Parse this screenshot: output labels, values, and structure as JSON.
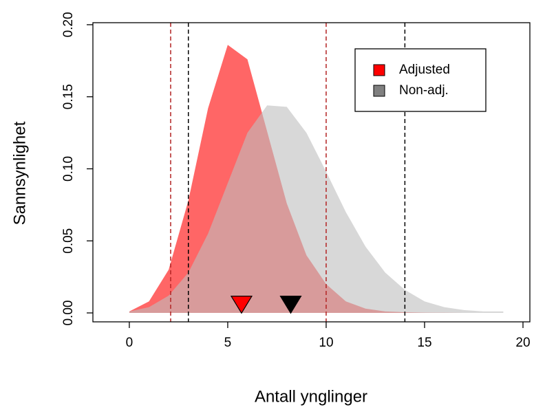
{
  "chart_data": {
    "type": "area",
    "x_label": "Antall ynglinger",
    "y_label": "Sannsynlighet",
    "x": [
      0,
      1,
      2,
      3,
      4,
      5,
      6,
      7,
      8,
      9,
      10,
      11,
      12,
      13,
      14,
      15,
      16,
      17,
      18,
      19
    ],
    "series": [
      {
        "name": "Adjusted",
        "color": "#ff0000",
        "legend_color": "#ff0000",
        "values": [
          0.001,
          0.008,
          0.03,
          0.078,
          0.142,
          0.186,
          0.176,
          0.126,
          0.076,
          0.04,
          0.02,
          0.008,
          0.003,
          0.001,
          0.0005,
          0.0002,
          0.0001,
          0,
          0,
          0
        ]
      },
      {
        "name": "Non-adj.",
        "color": "#bebebe",
        "legend_color": "#808080",
        "values": [
          0.001,
          0.004,
          0.012,
          0.028,
          0.055,
          0.09,
          0.125,
          0.144,
          0.143,
          0.125,
          0.098,
          0.07,
          0.046,
          0.028,
          0.016,
          0.008,
          0.004,
          0.002,
          0.001,
          0.001
        ]
      }
    ],
    "vlines": [
      {
        "x": 2.1,
        "color": "#b22222"
      },
      {
        "x": 10,
        "color": "#b22222"
      },
      {
        "x": 3,
        "color": "#000000"
      },
      {
        "x": 14,
        "color": "#000000"
      }
    ],
    "markers": [
      {
        "x": 5.7,
        "y": 0.007,
        "color": "#ff0000"
      },
      {
        "x": 8.2,
        "y": 0.007,
        "color": "#000000"
      }
    ],
    "xlim": [
      -1.85,
      20.35
    ],
    "ylim": [
      -0.0062,
      0.2014
    ],
    "xticks": [
      0,
      5,
      10,
      15,
      20
    ],
    "yticks": [
      {
        "value": 0,
        "label": "0.00"
      },
      {
        "value": 0.05,
        "label": "0.05"
      },
      {
        "value": 0.1,
        "label": "0.10"
      },
      {
        "value": 0.15,
        "label": "0.15"
      },
      {
        "value": 0.2,
        "label": "0.20"
      }
    ],
    "legend": "top-right"
  }
}
